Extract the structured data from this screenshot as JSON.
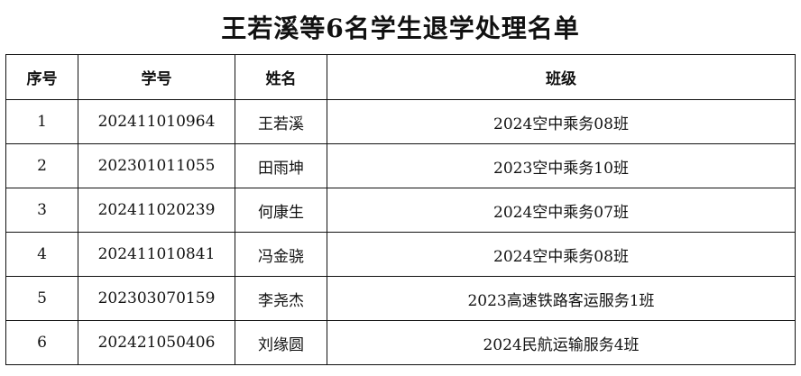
{
  "title": "王若溪等6名学生退学处理名单",
  "headers": {
    "index": "序号",
    "student_id": "学号",
    "name": "姓名",
    "class": "班级"
  },
  "rows": [
    {
      "index": "1",
      "student_id": "202411010964",
      "name": "王若溪",
      "class": "2024空中乘务08班"
    },
    {
      "index": "2",
      "student_id": "202301011055",
      "name": "田雨坤",
      "class": "2023空中乘务10班"
    },
    {
      "index": "3",
      "student_id": "202411020239",
      "name": "何康生",
      "class": "2024空中乘务07班"
    },
    {
      "index": "4",
      "student_id": "202411010841",
      "name": "冯金骁",
      "class": "2024空中乘务08班"
    },
    {
      "index": "5",
      "student_id": "202303070159",
      "name": "李尧杰",
      "class": "2023高速铁路客运服务1班"
    },
    {
      "index": "6",
      "student_id": "202421050406",
      "name": "刘缘圆",
      "class": "2024民航运输服务4班"
    }
  ]
}
